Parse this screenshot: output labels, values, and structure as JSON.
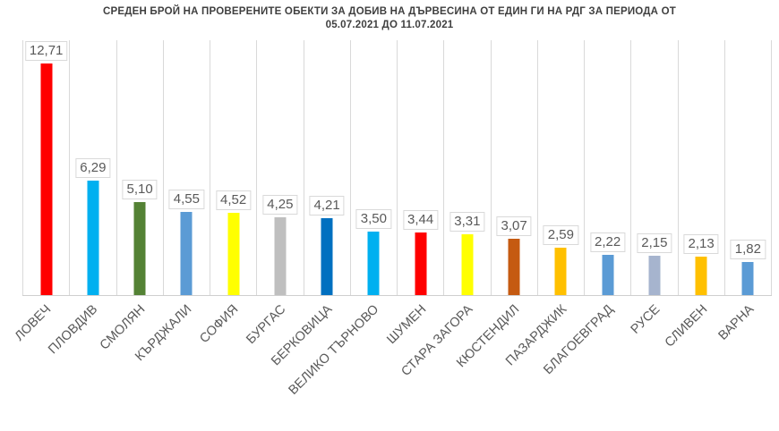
{
  "chart_data": {
    "type": "bar",
    "title_line1": "СРЕДЕН БРОЙ НА ПРОВЕРЕНИТЕ ОБЕКТИ ЗА ДОБИВ НА ДЪРВЕСИНА ОТ ЕДИН ГИ НА РДГ ЗА ПЕРИОДА ОТ",
    "title_line2": "05.07.2021 ДО 11.07.2021",
    "categories": [
      "ЛОВЕЧ",
      "ПЛОВДИВ",
      "СМОЛЯН",
      "КЪРДЖАЛИ",
      "СОФИЯ",
      "БУРГАС",
      "БЕРКОВИЦА",
      "ВЕЛИКО ТЪРНОВО",
      "ШУМЕН",
      "СТАРА ЗАГОРА",
      "КЮСТЕНДИЛ",
      "ПАЗАРДЖИК",
      "БЛАГОЕВГРАД",
      "РУСЕ",
      "СЛИВЕН",
      "ВАРНА"
    ],
    "values": [
      12.71,
      6.29,
      5.1,
      4.55,
      4.52,
      4.25,
      4.21,
      3.5,
      3.44,
      3.31,
      3.07,
      2.59,
      2.22,
      2.15,
      2.13,
      1.82
    ],
    "value_labels": [
      "12,71",
      "6,29",
      "5,10",
      "4,55",
      "4,52",
      "4,25",
      "4,21",
      "3,50",
      "3,44",
      "3,31",
      "3,07",
      "2,59",
      "2,22",
      "2,15",
      "2,13",
      "1,82"
    ],
    "bar_colors": [
      "#FF0000",
      "#00B0F0",
      "#548235",
      "#5B9BD5",
      "#FFFF00",
      "#BFBFBF",
      "#0070C0",
      "#00B0F0",
      "#FF0000",
      "#FFFF00",
      "#C55A11",
      "#FFC000",
      "#5B9BD5",
      "#A6B4CE",
      "#FFC000",
      "#5B9BD5"
    ],
    "xlabel": "",
    "ylabel": "",
    "ylim": [
      0,
      14
    ],
    "grid": "vertical-category-separators",
    "legend_position": "none",
    "colors": {
      "grid_line": "#D9D9D9",
      "axis_line": "#CFCFCF",
      "value_label_text": "#595959",
      "value_label_border": "#D9D9D9",
      "value_label_bg": "#FFFFFF",
      "axis_label_text": "#595959",
      "title_text": "#3F3F3F",
      "background": "#FFFFFF"
    }
  }
}
